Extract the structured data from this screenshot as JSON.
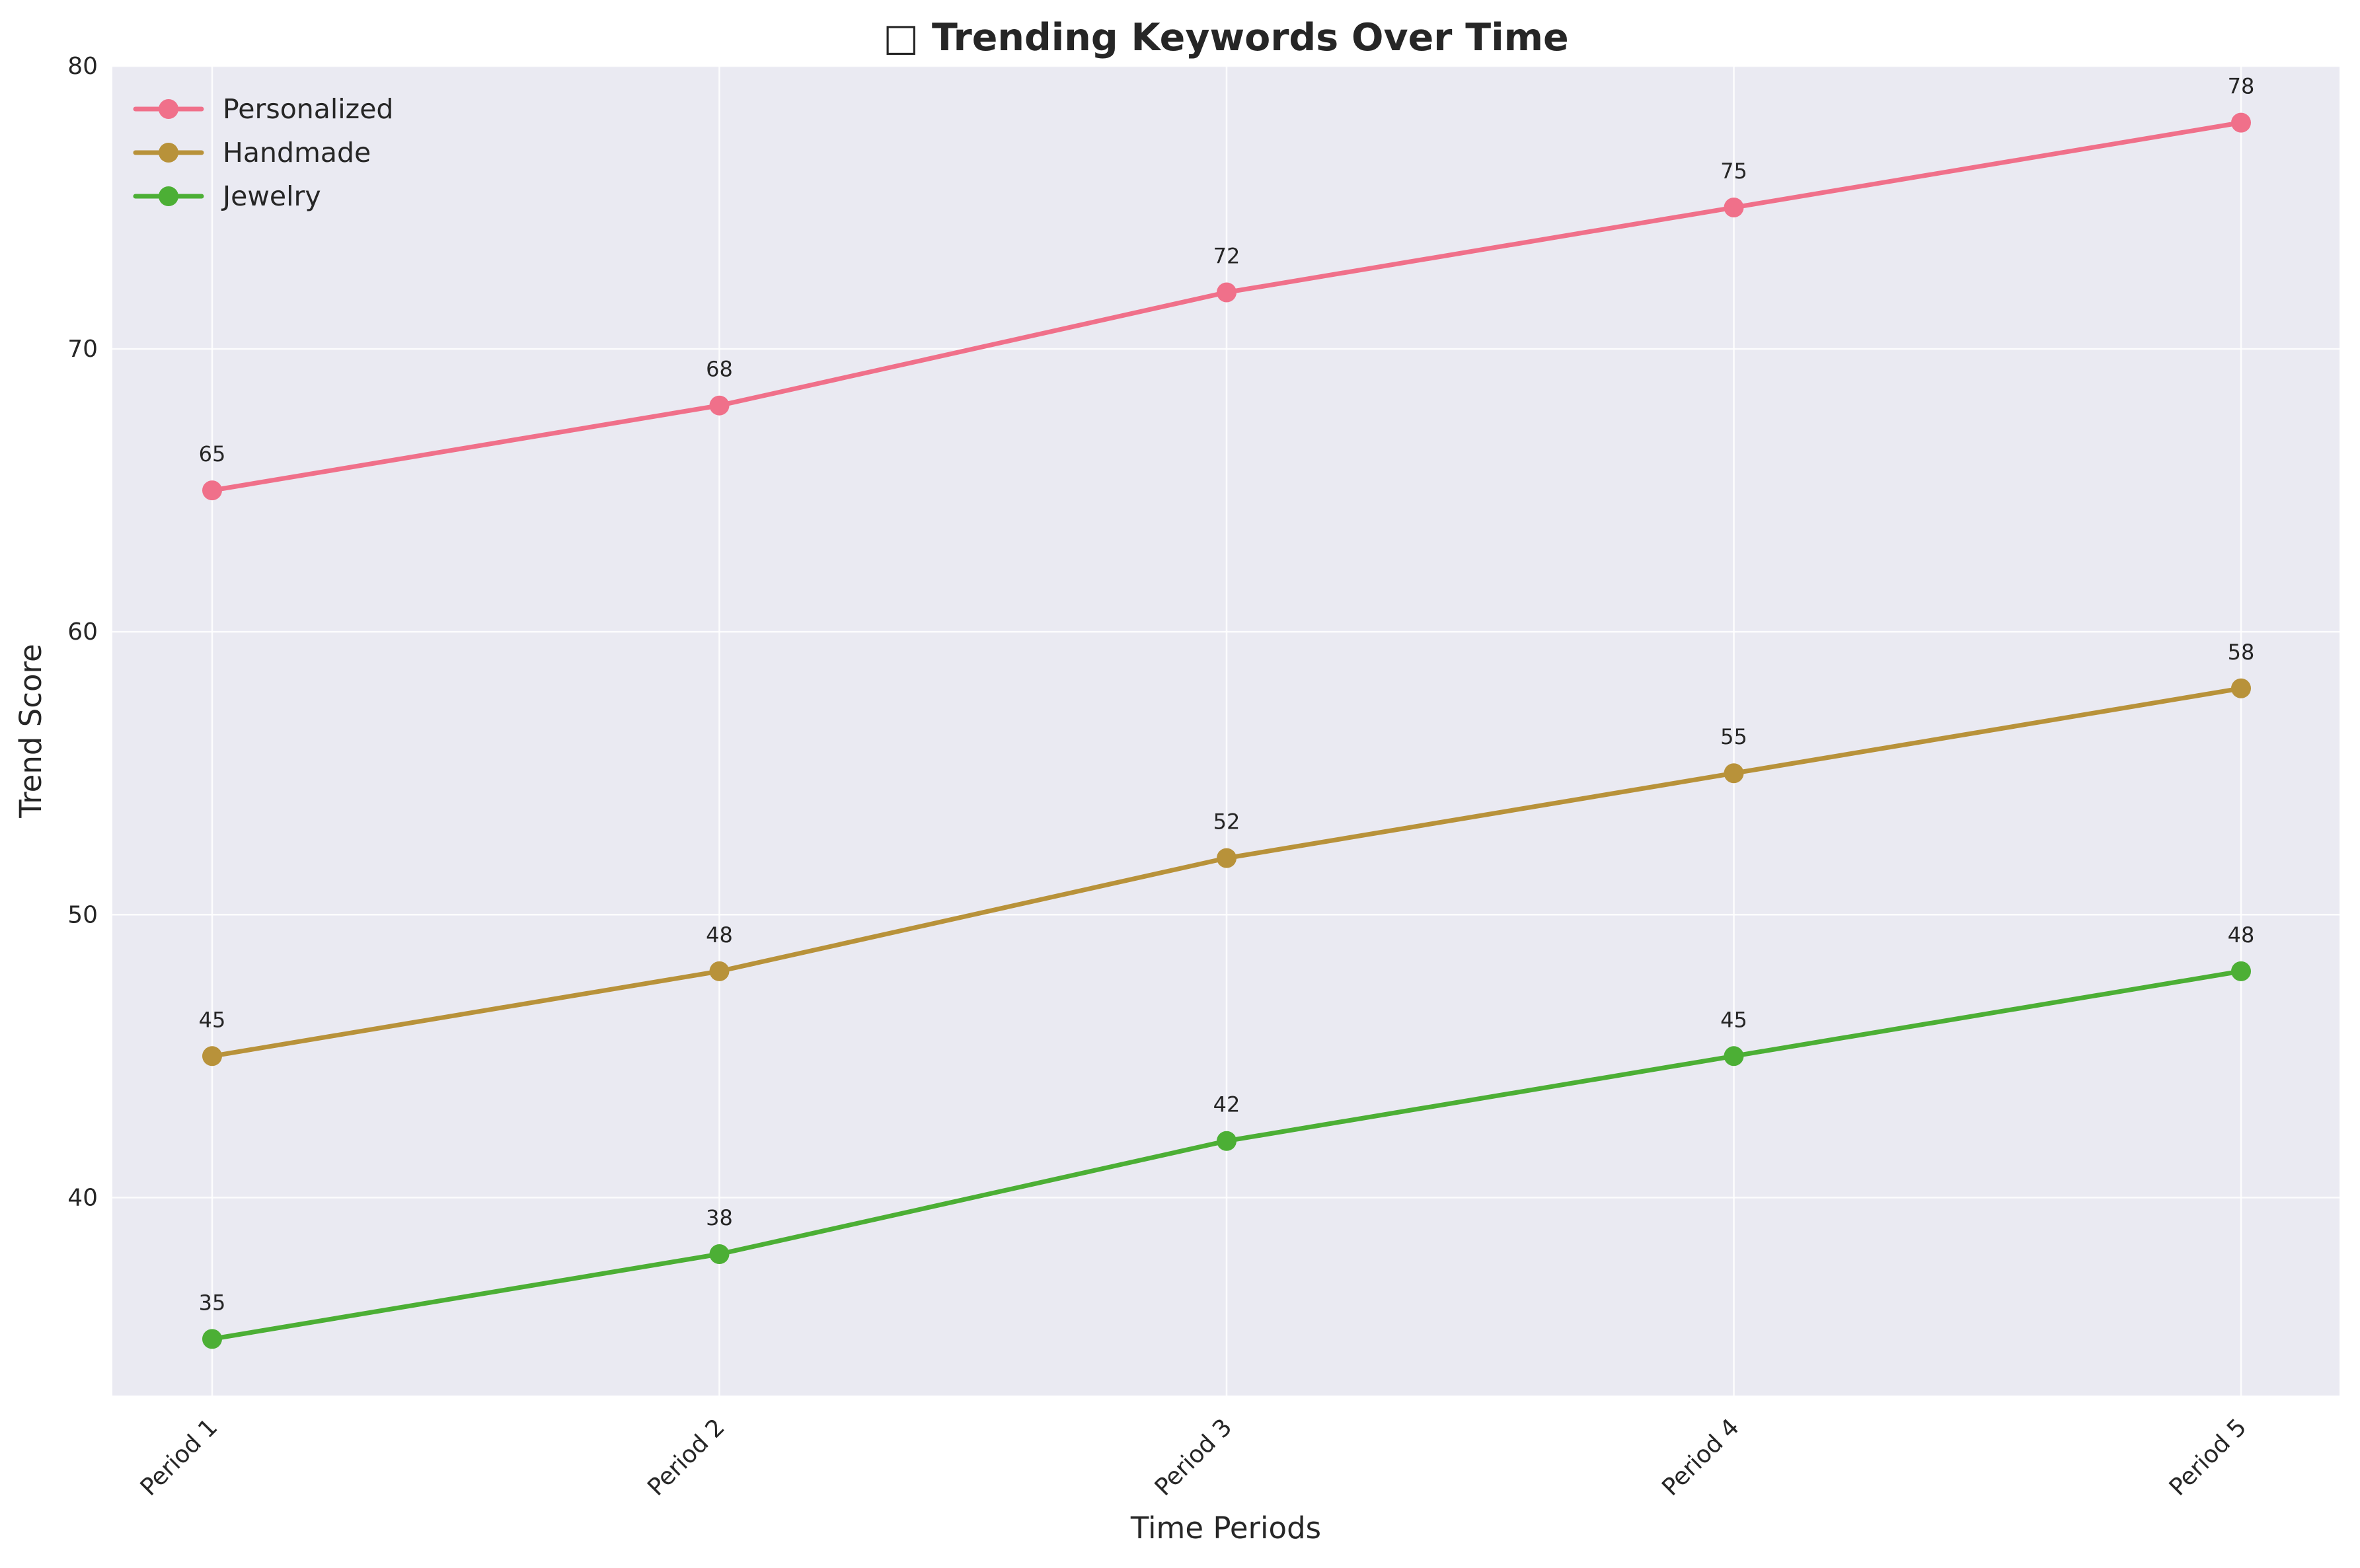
{
  "chart_data": {
    "type": "line",
    "title": "□ Trending Keywords Over Time",
    "xlabel": "Time Periods",
    "ylabel": "Trend Score",
    "categories": [
      "Period 1",
      "Period 2",
      "Period 3",
      "Period 4",
      "Period 5"
    ],
    "yticks": [
      40,
      50,
      60,
      70,
      80
    ],
    "ylim": [
      33,
      80
    ],
    "grid": true,
    "legend_position": "top-left",
    "background": "#eaeaf2",
    "series": [
      {
        "name": "Personalized",
        "color": "#f0708a",
        "values": [
          65,
          68,
          72,
          75,
          78
        ]
      },
      {
        "name": "Handmade",
        "color": "#b8923a",
        "values": [
          45,
          48,
          52,
          55,
          58
        ]
      },
      {
        "name": "Jewelry",
        "color": "#4caf35",
        "values": [
          35,
          38,
          42,
          45,
          48
        ]
      }
    ]
  }
}
